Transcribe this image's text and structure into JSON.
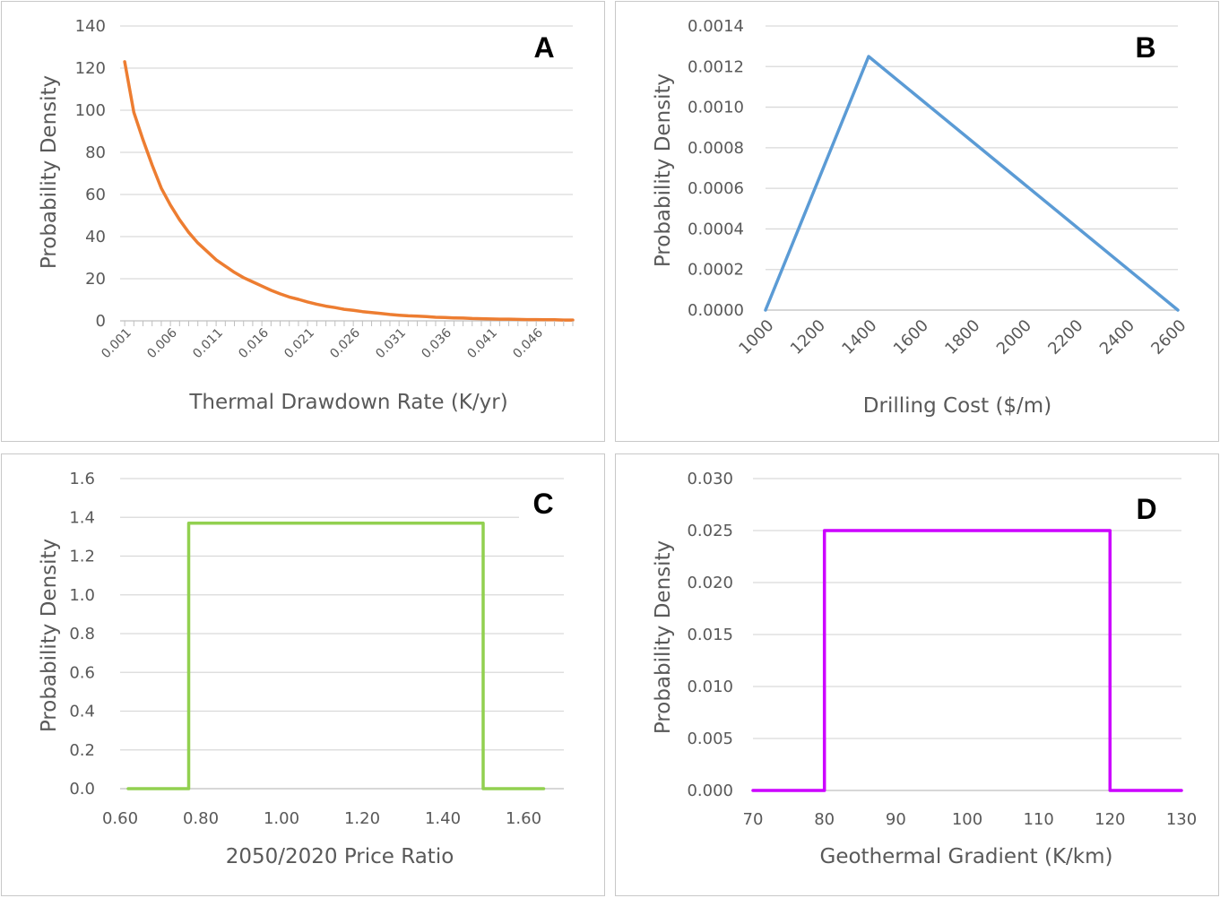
{
  "chart_data": [
    {
      "id": "A",
      "type": "line",
      "panel_label": "A",
      "xlabel": "Thermal Drawdown Rate (K/yr)",
      "ylabel": "Probability Density",
      "ylim": [
        0,
        140
      ],
      "yticks": [
        0,
        20,
        40,
        60,
        80,
        100,
        120,
        140
      ],
      "ytick_labels": [
        "0",
        "20",
        "40",
        "60",
        "80",
        "100",
        "120",
        "140"
      ],
      "xlim": [
        0.0005,
        0.05
      ],
      "xtick_labels": [
        "0.001",
        "0.006",
        "0.011",
        "0.016",
        "0.021",
        "0.026",
        "0.031",
        "0.036",
        "0.041",
        "0.046"
      ],
      "xtick_values": [
        0.001,
        0.006,
        0.011,
        0.016,
        0.021,
        0.026,
        0.031,
        0.036,
        0.041,
        0.046
      ],
      "grid": true,
      "color": "#ED7D31",
      "series": [
        {
          "x": [
            0.001,
            0.002,
            0.003,
            0.004,
            0.005,
            0.006,
            0.007,
            0.008,
            0.009,
            0.01,
            0.011,
            0.012,
            0.013,
            0.014,
            0.015,
            0.016,
            0.017,
            0.018,
            0.019,
            0.02,
            0.021,
            0.022,
            0.023,
            0.024,
            0.025,
            0.026,
            0.027,
            0.028,
            0.029,
            0.03,
            0.031,
            0.032,
            0.033,
            0.034,
            0.035,
            0.036,
            0.037,
            0.038,
            0.039,
            0.04,
            0.041,
            0.042,
            0.043,
            0.044,
            0.045,
            0.046,
            0.047,
            0.048,
            0.049,
            0.05
          ],
          "y": [
            123,
            99,
            86,
            74,
            63,
            55,
            48,
            42,
            37,
            33,
            29,
            26,
            23,
            20.5,
            18.5,
            16.5,
            14.5,
            12.8,
            11.3,
            10.2,
            9.0,
            7.9,
            7.0,
            6.3,
            5.5,
            5.0,
            4.4,
            3.9,
            3.5,
            3.0,
            2.7,
            2.4,
            2.2,
            2.0,
            1.7,
            1.6,
            1.4,
            1.3,
            1.1,
            1.0,
            0.9,
            0.8,
            0.8,
            0.7,
            0.6,
            0.6,
            0.5,
            0.5,
            0.4,
            0.4
          ]
        }
      ]
    },
    {
      "id": "B",
      "type": "line",
      "panel_label": "B",
      "xlabel": "Drilling Cost ($/m)",
      "ylabel": "Probability Density",
      "ylim": [
        0,
        0.0014
      ],
      "yticks": [
        0,
        0.0002,
        0.0004,
        0.0006,
        0.0008,
        0.001,
        0.0012,
        0.0014
      ],
      "ytick_labels": [
        "0.0000",
        "0.0002",
        "0.0004",
        "0.0006",
        "0.0008",
        "0.0010",
        "0.0012",
        "0.0014"
      ],
      "xlim": [
        1000,
        2600
      ],
      "xtick_labels": [
        "1000",
        "1200",
        "1400",
        "1600",
        "1800",
        "2000",
        "2200",
        "2400",
        "2600"
      ],
      "xtick_values": [
        1000,
        1200,
        1400,
        1600,
        1800,
        2000,
        2200,
        2400,
        2600
      ],
      "grid": true,
      "color": "#5B9BD5",
      "series": [
        {
          "x": [
            1000,
            1400,
            2600
          ],
          "y": [
            0,
            0.00125,
            0
          ]
        }
      ]
    },
    {
      "id": "C",
      "type": "line",
      "panel_label": "C",
      "xlabel": "2050/2020 Price Ratio",
      "ylabel": "Probability Density",
      "ylim": [
        0,
        1.6
      ],
      "yticks": [
        0,
        0.2,
        0.4,
        0.6,
        0.8,
        1.0,
        1.2,
        1.4,
        1.6
      ],
      "ytick_labels": [
        "0.0",
        "0.2",
        "0.4",
        "0.6",
        "0.8",
        "1.0",
        "1.2",
        "1.4",
        "1.6"
      ],
      "xlim": [
        0.6,
        1.7
      ],
      "xtick_labels": [
        "0.60",
        "0.80",
        "1.00",
        "1.20",
        "1.40",
        "1.60"
      ],
      "xtick_values": [
        0.6,
        0.8,
        1.0,
        1.2,
        1.4,
        1.6
      ],
      "grid": true,
      "color": "#92D050",
      "series": [
        {
          "x": [
            0.62,
            0.77,
            0.77,
            1.5,
            1.5,
            1.65
          ],
          "y": [
            0,
            0,
            1.37,
            1.37,
            0,
            0
          ]
        }
      ]
    },
    {
      "id": "D",
      "type": "line",
      "panel_label": "D",
      "xlabel": "Geothermal Gradient (K/km)",
      "ylabel": "Probability Density",
      "ylim": [
        0,
        0.03
      ],
      "yticks": [
        0,
        0.005,
        0.01,
        0.015,
        0.02,
        0.025,
        0.03
      ],
      "ytick_labels": [
        "0.000",
        "0.005",
        "0.010",
        "0.015",
        "0.020",
        "0.025",
        "0.030"
      ],
      "xlim": [
        70,
        130
      ],
      "xtick_labels": [
        "70",
        "80",
        "90",
        "100",
        "110",
        "120",
        "130"
      ],
      "xtick_values": [
        70,
        80,
        90,
        100,
        110,
        120,
        130
      ],
      "grid": true,
      "color": "#CC00FF",
      "series": [
        {
          "x": [
            70,
            80,
            80,
            120,
            120,
            130
          ],
          "y": [
            0,
            0,
            0.025,
            0.025,
            0,
            0
          ]
        }
      ]
    }
  ]
}
